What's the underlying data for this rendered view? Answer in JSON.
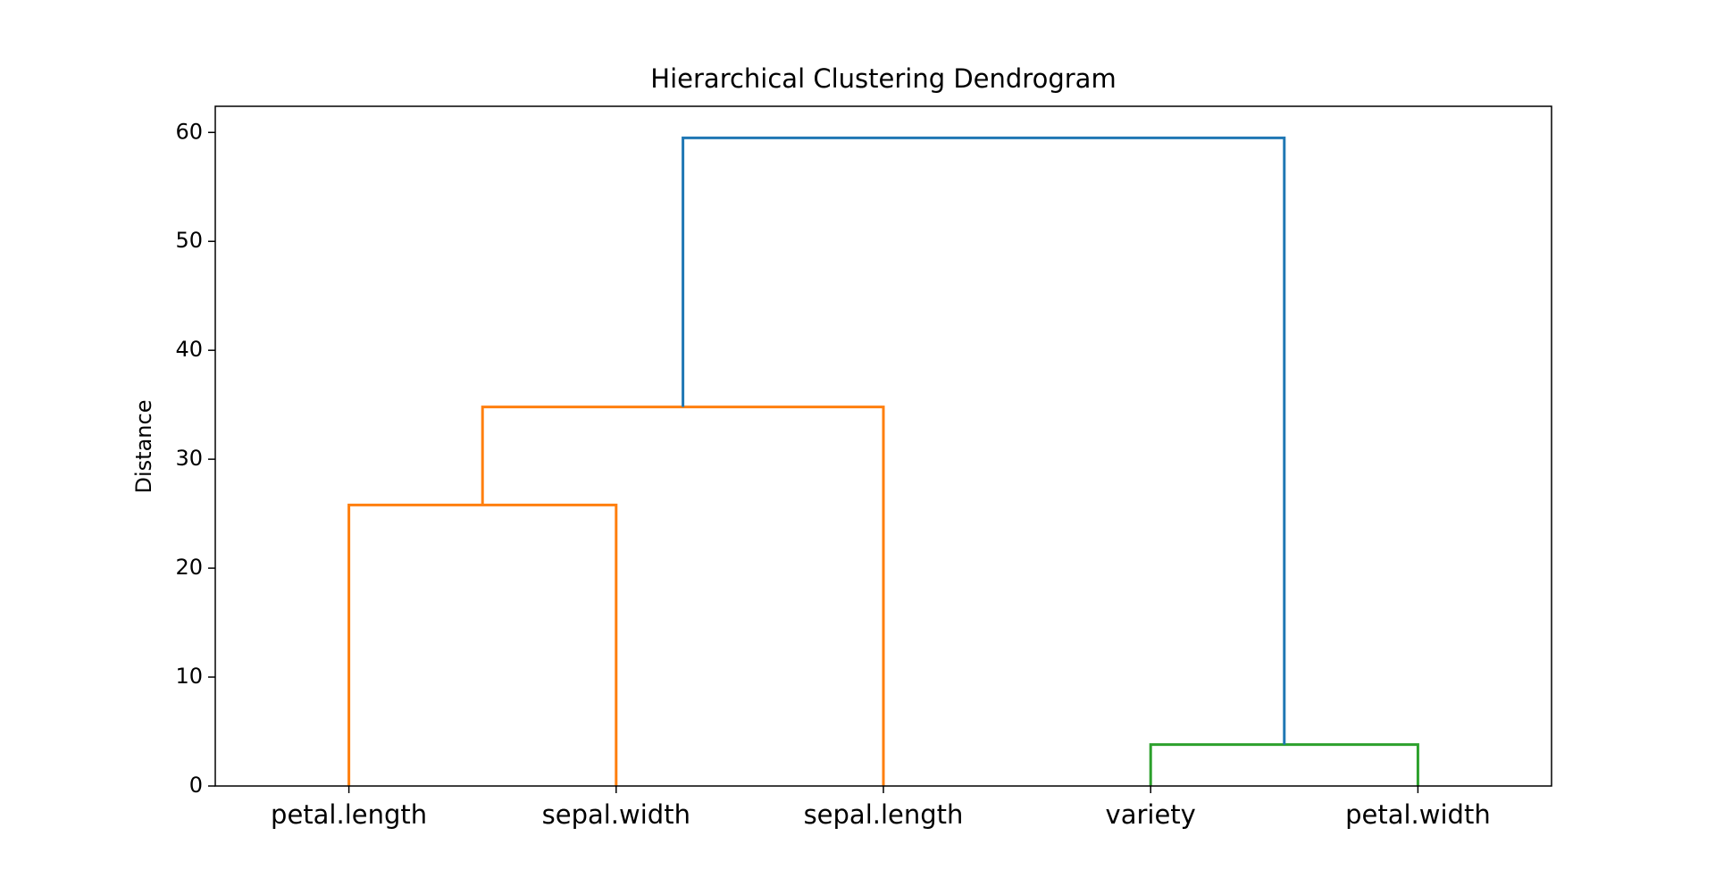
{
  "chart_data": {
    "type": "dendrogram",
    "title": "Hierarchical Clustering Dendrogram",
    "y_label": "Distance",
    "categories": [
      "petal.length",
      "sepal.width",
      "sepal.length",
      "variety",
      "petal.width"
    ],
    "merges": [
      {
        "children": [
          0,
          1
        ],
        "height": 25.8,
        "color": "#ff7f0e"
      },
      {
        "children": [
          3,
          4
        ],
        "height": 3.8,
        "color": "#2ca02c"
      },
      {
        "children": [
          5,
          2
        ],
        "height": 34.8,
        "color": "#ff7f0e"
      },
      {
        "children": [
          7,
          6
        ],
        "height": 59.5,
        "color": "#1f77b4"
      }
    ],
    "ylim": [
      0,
      62.4
    ],
    "yticks": [
      0,
      10,
      20,
      30,
      40,
      50,
      60
    ]
  }
}
